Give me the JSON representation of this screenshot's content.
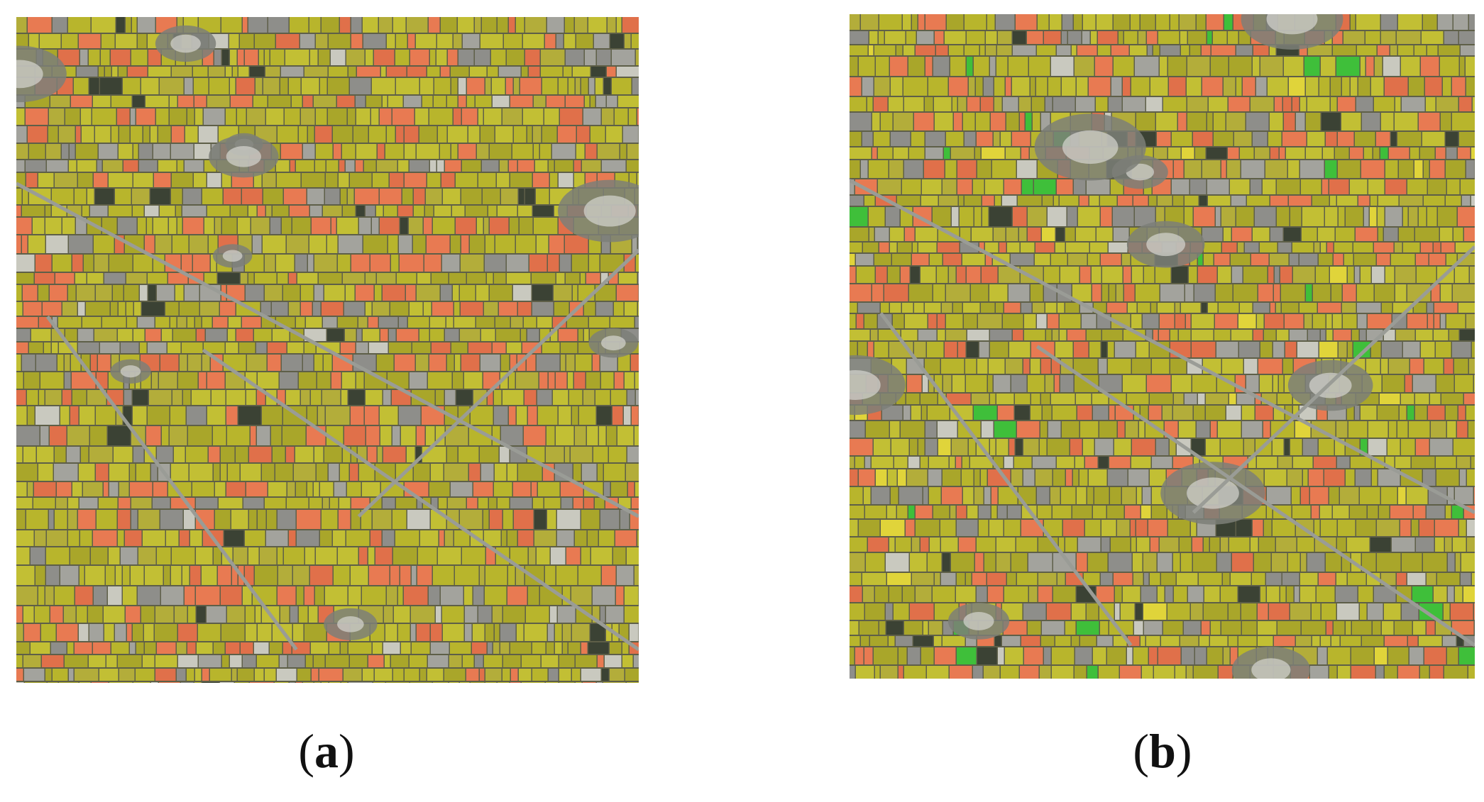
{
  "panels": [
    {
      "caption": [
        "(",
        "a",
        ")"
      ]
    },
    {
      "caption": [
        "(",
        "b",
        ")"
      ]
    }
  ]
}
